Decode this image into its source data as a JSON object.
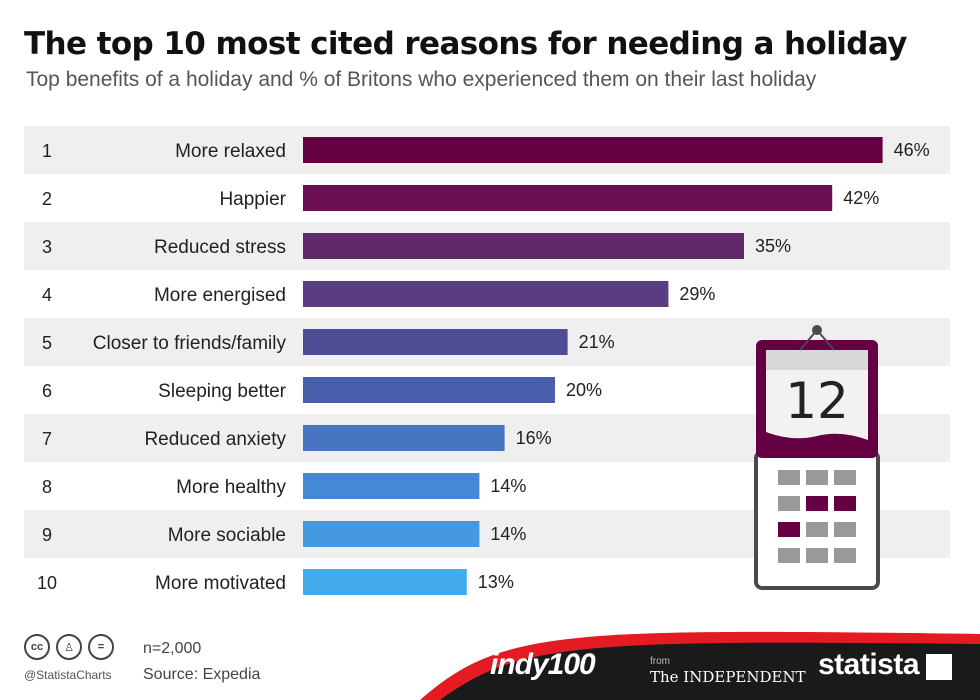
{
  "title": "The top 10 most cited reasons for needing a holiday",
  "subtitle": "Top benefits of a holiday and % of Britons who experienced them on their last holiday",
  "chart_data": {
    "type": "bar",
    "orientation": "horizontal",
    "ranks": [
      "1",
      "2",
      "3",
      "4",
      "5",
      "6",
      "7",
      "8",
      "9",
      "10"
    ],
    "categories": [
      "More relaxed",
      "Happier",
      "Reduced stress",
      "More energised",
      "Closer to friends/family",
      "Sleeping better",
      "Reduced anxiety",
      "More healthy",
      "More sociable",
      "More motivated"
    ],
    "values": [
      46,
      42,
      35,
      29,
      21,
      20,
      16,
      14,
      14,
      13
    ],
    "value_labels": [
      "46%",
      "42%",
      "35%",
      "29%",
      "21%",
      "20%",
      "16%",
      "14%",
      "14%",
      "13%"
    ],
    "unit": "%",
    "bar_colors": [
      "#650042",
      "#6a1052",
      "#602a6a",
      "#5a3c82",
      "#4f4b95",
      "#4a5fab",
      "#4775c2",
      "#4588d3",
      "#4499df",
      "#43aced"
    ],
    "row_bg_alternate": "#efefef",
    "grid": false,
    "legend": "none"
  },
  "calendar": {
    "number": "12",
    "frame_color": "#650042",
    "body_color": "#4a4a4a"
  },
  "footer": {
    "sample": "n=2,000",
    "source": "Source: Expedia",
    "handle": "@StatistaCharts",
    "cc_icons": [
      "cc",
      "by",
      "="
    ],
    "brand_indy": "indy100",
    "from_label": "from",
    "brand_independent": "The INDEPENDENT",
    "brand_statista": "statista",
    "accent": "#e31b23",
    "dark": "#1a1a1a"
  }
}
